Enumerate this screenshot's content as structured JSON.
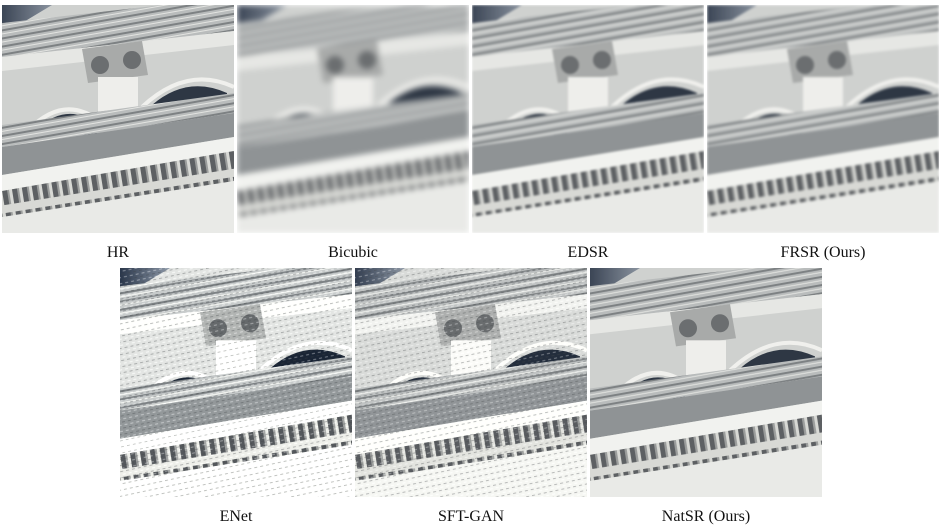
{
  "figure": {
    "panels": [
      {
        "label": "HR",
        "style": "sharp"
      },
      {
        "label": "Bicubic",
        "style": "blur"
      },
      {
        "label": "EDSR",
        "style": "smooth"
      },
      {
        "label": "FRSR (Ours)",
        "style": "smooth"
      },
      {
        "label": "ENet",
        "style": "artifact"
      },
      {
        "label": "SFT-GAN",
        "style": "noisy"
      },
      {
        "label": "NatSR (Ours)",
        "style": "natural"
      }
    ]
  }
}
